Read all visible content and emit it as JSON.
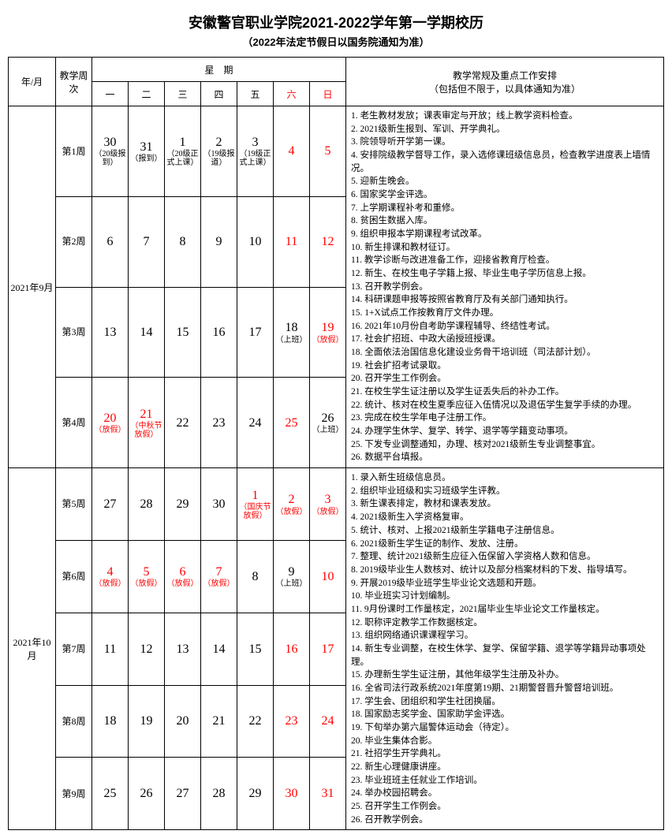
{
  "title": "安徽警官职业学院2021-2022学年第一学期校历",
  "subtitle": "（2022年法定节假日以国务院通知为准）",
  "headers": {
    "year_month": "年/月",
    "teach_week": "教学周次",
    "weekday_group": "星　期",
    "notes_title": "教学常规及重点工作安排",
    "notes_sub": "（包括但不限于，以具体通知为准）",
    "mon": "一",
    "tue": "二",
    "wed": "三",
    "thu": "四",
    "fri": "五",
    "sat": "六",
    "sun": "日"
  },
  "months": [
    {
      "label": "2021年9月",
      "weeks": [
        {
          "label": "第1周",
          "days": [
            {
              "n": "30",
              "sub": "（20级报到）"
            },
            {
              "n": "31",
              "sub": "（报到）"
            },
            {
              "n": "1",
              "sub": "（20级正式上课）"
            },
            {
              "n": "2",
              "sub": "（19级报道）"
            },
            {
              "n": "3",
              "sub": "（19级正式上课）"
            },
            {
              "n": "4",
              "red": true
            },
            {
              "n": "5",
              "red": true
            }
          ]
        },
        {
          "label": "第2周",
          "days": [
            {
              "n": "6"
            },
            {
              "n": "7"
            },
            {
              "n": "8"
            },
            {
              "n": "9"
            },
            {
              "n": "10"
            },
            {
              "n": "11",
              "red": true
            },
            {
              "n": "12",
              "red": true
            }
          ]
        },
        {
          "label": "第3周",
          "days": [
            {
              "n": "13"
            },
            {
              "n": "14"
            },
            {
              "n": "15"
            },
            {
              "n": "16"
            },
            {
              "n": "17"
            },
            {
              "n": "18",
              "sub": "（上班）"
            },
            {
              "n": "19",
              "sub": "（放假）",
              "red": true
            }
          ]
        },
        {
          "label": "第4周",
          "days": [
            {
              "n": "20",
              "sub": "（放假）",
              "red": true
            },
            {
              "n": "21",
              "sub": "（中秋节放假）",
              "red": true
            },
            {
              "n": "22"
            },
            {
              "n": "23"
            },
            {
              "n": "24"
            },
            {
              "n": "25",
              "red": true
            },
            {
              "n": "26",
              "sub": "（上班）"
            }
          ]
        }
      ],
      "notes": [
        "1. 老生教材发放；课表审定与开放；线上教学资料检查。",
        "2. 2021级新生报到、军训、开学典礼。",
        "3. 院领导听开学第一课。",
        "4. 安排院级教学督导工作，录入选修课班级信息员，检查教学进度表上墙情况。",
        "5. 迎新生晚会。",
        "6. 国家奖学金评选。",
        "7. 上学期课程补考和重修。",
        "8. 贫困生数据入库。",
        "9. 组织申报本学期课程考试改革。",
        "10. 新生排课和教材征订。",
        "11. 教学诊断与改进准备工作，迎接省教育厅检查。",
        "12. 新生、在校生电子学籍上报、毕业生电子学历信息上报。",
        "13. 召开教学例会。",
        "14. 科研课题申报等按照省教育厅及有关部门通知执行。",
        "15. 1+X试点工作按教育厅文件办理。",
        "16. 2021年10月份自考助学课程辅导、终结性考试。",
        "17. 社会扩招班、中政大函授班授课。",
        "18. 全面依法治国信息化建设业务骨干培训班（司法部计划）。",
        "19. 社会扩招考试录取。",
        "20. 召开学生工作例会。",
        "21. 在校生学生证注册以及学生证丢失后的补办工作。",
        "22. 统计、核对在校生夏季应征入伍情况以及退伍学生复学手续的办理。",
        "23. 完成在校生学年电子注册工作。",
        "24. 办理学生休学、复学、转学、退学等学籍变动事项。",
        "25. 下发专业调整通知，办理、核对2021级新生专业调整事宜。",
        "26. 数据平台填报。"
      ]
    },
    {
      "label": "2021年10月",
      "weeks": [
        {
          "label": "第5周",
          "days": [
            {
              "n": "27"
            },
            {
              "n": "28"
            },
            {
              "n": "29"
            },
            {
              "n": "30"
            },
            {
              "n": "1",
              "sub": "（国庆节放假）",
              "red": true
            },
            {
              "n": "2",
              "sub": "（放假）",
              "red": true
            },
            {
              "n": "3",
              "sub": "（放假）",
              "red": true
            }
          ]
        },
        {
          "label": "第6周",
          "days": [
            {
              "n": "4",
              "sub": "（放假）",
              "red": true
            },
            {
              "n": "5",
              "sub": "（放假）",
              "red": true
            },
            {
              "n": "6",
              "sub": "（放假）",
              "red": true
            },
            {
              "n": "7",
              "sub": "（放假）",
              "red": true
            },
            {
              "n": "8"
            },
            {
              "n": "9",
              "sub": "（上班）"
            },
            {
              "n": "10",
              "red": true
            }
          ]
        },
        {
          "label": "第7周",
          "days": [
            {
              "n": "11"
            },
            {
              "n": "12"
            },
            {
              "n": "13"
            },
            {
              "n": "14"
            },
            {
              "n": "15"
            },
            {
              "n": "16",
              "red": true
            },
            {
              "n": "17",
              "red": true
            }
          ]
        },
        {
          "label": "第8周",
          "days": [
            {
              "n": "18"
            },
            {
              "n": "19"
            },
            {
              "n": "20"
            },
            {
              "n": "21"
            },
            {
              "n": "22"
            },
            {
              "n": "23",
              "red": true
            },
            {
              "n": "24",
              "red": true
            }
          ]
        },
        {
          "label": "第9周",
          "days": [
            {
              "n": "25"
            },
            {
              "n": "26"
            },
            {
              "n": "27"
            },
            {
              "n": "28"
            },
            {
              "n": "29"
            },
            {
              "n": "30",
              "red": true
            },
            {
              "n": "31",
              "red": true
            }
          ]
        }
      ],
      "notes": [
        "1. 录入新生班级信息员。",
        "2. 组织毕业班级和实习班级学生评教。",
        "3. 新生课表排定，教材和课表发放。",
        "4. 2021级新生入学资格复审。",
        "5. 统计、核对、上报2021级新生学籍电子注册信息。",
        "6. 2021级新生学生证的制作、发放、注册。",
        "7. 整理、统计2021级新生应征入伍保留入学资格人数和信息。",
        "8. 2019级毕业生人数核对、统计以及部分档案材料的下发、指导填写。",
        "9. 开展2019级毕业班学生毕业论文选题和开题。",
        "10. 毕业班实习计划编制。",
        "11. 9月份课时工作量核定，2021届毕业生毕业论文工作量核定。",
        "12. 职称评定教学工作数据核定。",
        "13. 组织网络通识课课程学习。",
        "14. 新生专业调整，在校生休学、复学、保留学籍、退学等学籍异动事项处理。",
        "15. 办理新生学生证注册，其他年级学生注册及补办。",
        "16. 全省司法行政系统2021年度第19期、21期警督晋升警督培训班。",
        "17. 学生会、团组织和学生社团换届。",
        "18. 国家励志奖学金、国家助学金评选。",
        "19. 下旬举办第六届警体运动会（待定）。",
        "20. 毕业生集体合影。",
        "21. 社招学生开学典礼。",
        "22. 新生心理健康讲座。",
        "23. 毕业班班主任就业工作培训。",
        "24. 举办校园招聘会。",
        "25. 召开学生工作例会。",
        "26. 召开教学例会。"
      ]
    }
  ]
}
